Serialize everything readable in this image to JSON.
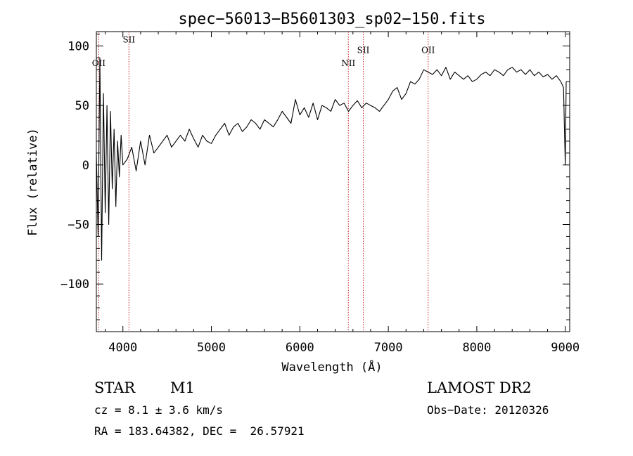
{
  "chart_data": {
    "type": "line",
    "title": "spec−56013−B5601303_sp02−150.fits",
    "xlabel": "Wavelength (Å)",
    "ylabel": "Flux (relative)",
    "xlim": [
      3700,
      9050
    ],
    "ylim": [
      -140,
      112
    ],
    "xticks": [
      4000,
      5000,
      6000,
      7000,
      8000,
      9000
    ],
    "yticks": [
      -100,
      -50,
      0,
      50,
      100
    ],
    "ytick_labels": [
      "−100",
      "−50",
      "0",
      "50",
      "100"
    ],
    "grid": false,
    "legend": "none",
    "line_color": "#000000",
    "marker_color": "#cc2222",
    "series": [
      {
        "x": [
          3700,
          3720,
          3740,
          3760,
          3780,
          3800,
          3820,
          3840,
          3860,
          3880,
          3900,
          3920,
          3940,
          3960,
          3980,
          4000,
          4050,
          4100,
          4150,
          4200,
          4250,
          4300,
          4350,
          4400,
          4450,
          4500,
          4550,
          4600,
          4650,
          4700,
          4750,
          4800,
          4850,
          4900,
          4950,
          5000,
          5050,
          5100,
          5150,
          5200,
          5250,
          5300,
          5350,
          5400,
          5450,
          5500,
          5550,
          5600,
          5650,
          5700,
          5750,
          5800,
          5850,
          5900,
          5950,
          6000,
          6050,
          6100,
          6150,
          6200,
          6250,
          6300,
          6350,
          6400,
          6450,
          6500,
          6550,
          6600,
          6650,
          6700,
          6750,
          6800,
          6850,
          6900,
          6950,
          7000,
          7050,
          7100,
          7150,
          7200,
          7250,
          7300,
          7350,
          7400,
          7450,
          7500,
          7550,
          7600,
          7650,
          7700,
          7750,
          7800,
          7850,
          7900,
          7950,
          8000,
          8050,
          8100,
          8150,
          8200,
          8250,
          8300,
          8350,
          8400,
          8450,
          8500,
          8550,
          8600,
          8650,
          8700,
          8750,
          8800,
          8850,
          8900,
          8950,
          8980,
          9000,
          9010
        ],
        "y": [
          10,
          -60,
          90,
          -80,
          60,
          -40,
          50,
          -50,
          45,
          -20,
          30,
          -35,
          20,
          -10,
          25,
          0,
          5,
          15,
          -5,
          20,
          0,
          25,
          10,
          15,
          20,
          25,
          15,
          20,
          25,
          20,
          30,
          22,
          15,
          25,
          20,
          18,
          25,
          30,
          35,
          25,
          32,
          35,
          28,
          32,
          38,
          35,
          30,
          38,
          35,
          32,
          38,
          45,
          40,
          35,
          55,
          42,
          48,
          40,
          52,
          38,
          50,
          48,
          45,
          55,
          50,
          52,
          45,
          50,
          54,
          48,
          52,
          50,
          48,
          45,
          50,
          55,
          62,
          65,
          55,
          60,
          70,
          68,
          72,
          80,
          78,
          76,
          80,
          75,
          82,
          72,
          78,
          75,
          72,
          75,
          70,
          72,
          76,
          78,
          75,
          80,
          78,
          75,
          80,
          82,
          78,
          80,
          76,
          80,
          75,
          78,
          74,
          76,
          72,
          75,
          70,
          65,
          0,
          70
        ]
      }
    ],
    "line_markers": [
      {
        "label": "OII",
        "x": 3727,
        "label_y": 83
      },
      {
        "label": "SII",
        "x": 4068,
        "label_y": 103
      },
      {
        "label": "NII",
        "x": 6548,
        "label_y": 83
      },
      {
        "label": "SII",
        "x": 6717,
        "label_y": 94
      },
      {
        "label": "OII",
        "x": 7450,
        "label_y": 94
      }
    ]
  },
  "info": {
    "class": "STAR",
    "subclass": "M1",
    "cz": "cz = 8.1 ± 3.6 km/s",
    "coords": "RA = 183.64382, DEC =  26.57921",
    "survey": "LAMOST DR2",
    "obs_date": "Obs−Date: 20120326"
  }
}
